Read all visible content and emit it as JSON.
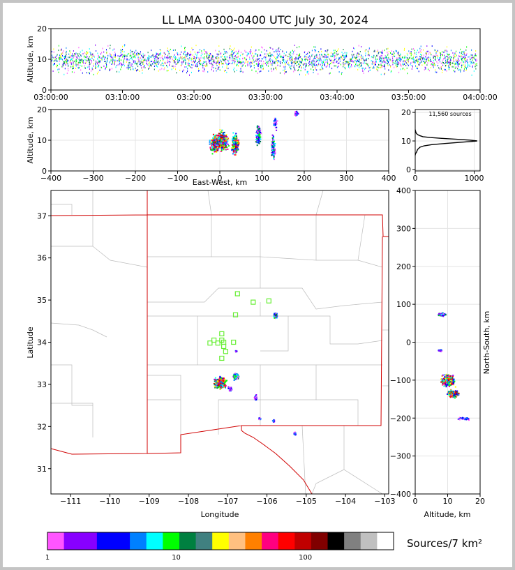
{
  "title": "LL LMA 0300-0400 UTC July 30, 2024",
  "colorbar": {
    "label": "Sources/7 km²",
    "ticks": [
      "1",
      "10",
      "100"
    ],
    "colors": [
      "#ff55ff",
      "#8800ff",
      "#8800ff",
      "#0000ff",
      "#0000ff",
      "#0080ff",
      "#00ffff",
      "#00ff00",
      "#008040",
      "#408080",
      "#ffff00",
      "#ffc080",
      "#ff8000",
      "#ff0080",
      "#ff0000",
      "#c00000",
      "#800000",
      "#000000",
      "#808080",
      "#c0c0c0",
      "#ffffff"
    ]
  },
  "chart_data": [
    {
      "type": "scatter",
      "name": "time-altitude",
      "xlabel": "",
      "ylabel": "Altitude, km",
      "xticks": [
        "03:00:00",
        "03:10:00",
        "03:20:00",
        "03:30:00",
        "03:40:00",
        "03:50:00",
        "04:00:00"
      ],
      "xlim_minutes": [
        0,
        60
      ],
      "ylim": [
        0,
        20
      ],
      "yticks": [
        0,
        10,
        20
      ],
      "altitude_band_km": [
        5,
        15
      ],
      "sources": 11560
    },
    {
      "type": "scatter",
      "name": "east-west-altitude",
      "xlabel": "East-West, km",
      "ylabel": "Altitude, km",
      "xlim": [
        -400,
        400
      ],
      "xticks": [
        -400,
        -300,
        -200,
        -100,
        0,
        100,
        200,
        300,
        400
      ],
      "ylim": [
        0,
        20
      ],
      "yticks": [
        0,
        10,
        20
      ],
      "clusters": [
        {
          "x": -10,
          "y": 9,
          "w": 40,
          "h": 7,
          "density": "high"
        },
        {
          "x": 5,
          "y": 10,
          "w": 35,
          "h": 8,
          "density": "high"
        },
        {
          "x": 35,
          "y": 9,
          "w": 20,
          "h": 8,
          "density": "high"
        },
        {
          "x": 90,
          "y": 12,
          "w": 15,
          "h": 8,
          "density": "medium"
        },
        {
          "x": 125,
          "y": 8,
          "w": 12,
          "h": 9,
          "density": "medium"
        },
        {
          "x": 130,
          "y": 16,
          "w": 10,
          "h": 6,
          "density": "low"
        },
        {
          "x": 180,
          "y": 19,
          "w": 10,
          "h": 2,
          "density": "low"
        }
      ]
    },
    {
      "type": "line",
      "name": "altitude-histogram",
      "annotation": "11,560 sources",
      "xlim": [
        0,
        1100
      ],
      "xticks": [
        0,
        1000
      ],
      "ylim": [
        -0.5,
        21
      ],
      "yticks": [
        0,
        10,
        20
      ],
      "x": [
        0,
        5,
        20,
        40,
        80,
        150,
        280,
        500,
        750,
        950,
        1050,
        920,
        700,
        450,
        250,
        130,
        70,
        35,
        15,
        5,
        0
      ],
      "y": [
        5,
        5.5,
        6,
        7,
        7.8,
        8.3,
        8.7,
        9.1,
        9.5,
        9.8,
        10,
        10.3,
        10.6,
        10.9,
        11.2,
        11.5,
        11.9,
        12.3,
        12.8,
        13.5,
        14
      ]
    },
    {
      "type": "scatter",
      "name": "plan-view",
      "xlabel": "Longitude",
      "ylabel": "Latitude",
      "xlim": [
        -111.5,
        -102.9
      ],
      "xticks": [
        -111,
        -110,
        -109,
        -108,
        -107,
        -106,
        -105,
        -104,
        -103
      ],
      "ylim": [
        30.4,
        37.6
      ],
      "yticks": [
        31,
        32,
        33,
        34,
        35,
        36,
        37
      ],
      "clusters": [
        {
          "lon": -107.2,
          "lat": 33.05,
          "w": 0.4,
          "h": 0.35,
          "density": "high"
        },
        {
          "lon": -106.8,
          "lat": 33.2,
          "w": 0.2,
          "h": 0.2,
          "density": "medium"
        },
        {
          "lon": -106.95,
          "lat": 32.9,
          "w": 0.12,
          "h": 0.15,
          "density": "low"
        },
        {
          "lon": -106.3,
          "lat": 32.7,
          "w": 0.1,
          "h": 0.15,
          "density": "low"
        },
        {
          "lon": -106.2,
          "lat": 32.2,
          "w": 0.08,
          "h": 0.06,
          "density": "low"
        },
        {
          "lon": -105.85,
          "lat": 32.15,
          "w": 0.08,
          "h": 0.06,
          "density": "low"
        },
        {
          "lon": -105.8,
          "lat": 34.65,
          "w": 0.12,
          "h": 0.15,
          "density": "medium"
        },
        {
          "lon": -105.3,
          "lat": 31.85,
          "w": 0.08,
          "h": 0.08,
          "density": "low"
        },
        {
          "lon": -106.8,
          "lat": 33.8,
          "w": 0.04,
          "h": 0.04,
          "density": "low"
        }
      ],
      "stations": [
        [
          -106.75,
          35.15
        ],
        [
          -106.35,
          34.95
        ],
        [
          -105.95,
          34.98
        ],
        [
          -106.8,
          34.65
        ],
        [
          -107.15,
          34.2
        ],
        [
          -107.15,
          34.05
        ],
        [
          -107.35,
          34.05
        ],
        [
          -107.1,
          34.0
        ],
        [
          -107.45,
          33.98
        ],
        [
          -107.25,
          33.98
        ],
        [
          -106.85,
          34.0
        ],
        [
          -107.1,
          33.9
        ],
        [
          -107.05,
          33.78
        ],
        [
          -107.15,
          33.62
        ]
      ]
    },
    {
      "type": "scatter",
      "name": "altitude-north-south",
      "xlabel": "Altitude, km",
      "ylabel": "North-South, km",
      "xlim": [
        0,
        20
      ],
      "xticks": [
        0,
        10,
        20
      ],
      "ylim": [
        -400,
        400
      ],
      "yticks": [
        -400,
        -300,
        -200,
        -100,
        0,
        100,
        200,
        300,
        400
      ],
      "clusters": [
        {
          "x": 8,
          "y": 75,
          "w": 3,
          "h": 12,
          "density": "medium"
        },
        {
          "x": 7.5,
          "y": -20,
          "w": 2,
          "h": 6,
          "density": "low"
        },
        {
          "x": 10,
          "y": -100,
          "w": 5,
          "h": 40,
          "density": "high"
        },
        {
          "x": 11.5,
          "y": -135,
          "w": 4,
          "h": 25,
          "density": "high"
        },
        {
          "x": 15,
          "y": -200,
          "w": 5,
          "h": 10,
          "density": "low"
        }
      ]
    }
  ]
}
